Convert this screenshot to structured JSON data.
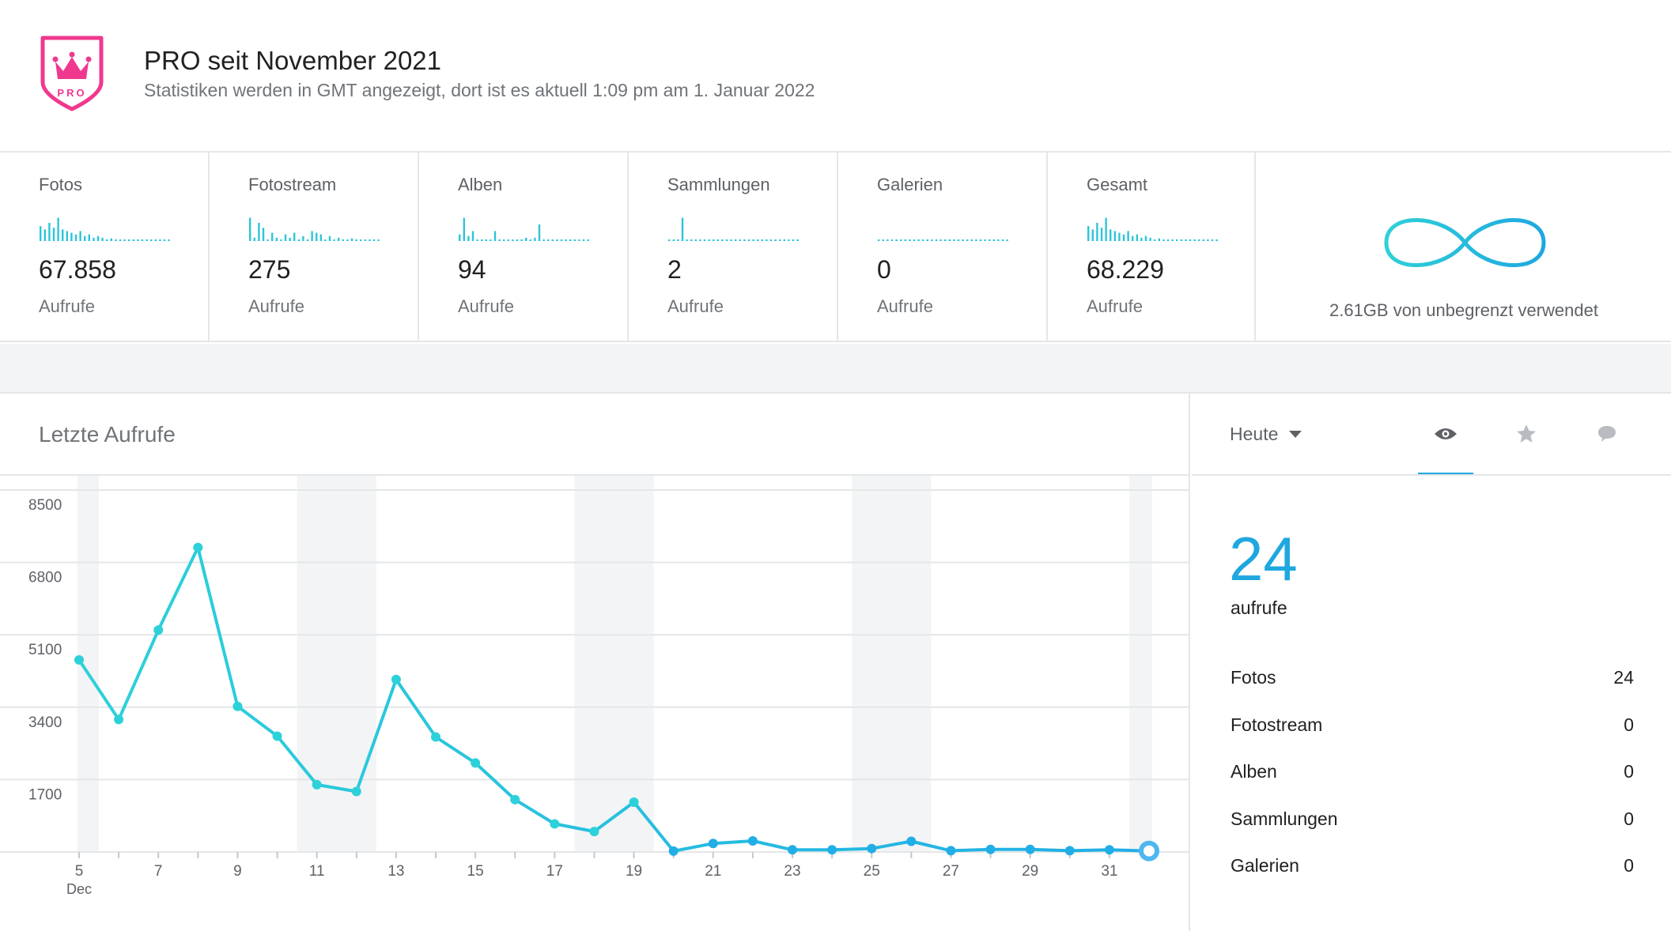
{
  "header": {
    "badge_text": "PRO",
    "title": "PRO seit November 2021",
    "subtitle": "Statistiken werden in GMT angezeigt, dort ist es aktuell 1:09 pm am 1. Januar 2022"
  },
  "stats": [
    {
      "label": "Fotos",
      "value": "67.858",
      "unit": "Aufrufe",
      "spark": [
        0.45,
        0.35,
        0.55,
        0.4,
        0.7,
        0.35,
        0.3,
        0.25,
        0.2,
        0.3,
        0.15,
        0.2,
        0.1,
        0.15,
        0.1,
        0.05,
        0.08,
        0.05,
        0.05,
        0.05,
        0.05,
        0.05,
        0.05,
        0.05,
        0.05,
        0.05,
        0.05,
        0.05,
        0.05,
        0.05
      ]
    },
    {
      "label": "Fotostream",
      "value": "275",
      "unit": "Aufrufe",
      "spark": [
        0.7,
        0.1,
        0.55,
        0.4,
        0.05,
        0.25,
        0.1,
        0.05,
        0.2,
        0.1,
        0.25,
        0.05,
        0.15,
        0.05,
        0.3,
        0.25,
        0.2,
        0.05,
        0.15,
        0.05,
        0.1,
        0.05,
        0.05,
        0.08,
        0.05,
        0.05,
        0.05,
        0.05,
        0.05,
        0.05
      ]
    },
    {
      "label": "Alben",
      "value": "94",
      "unit": "Aufrufe",
      "spark": [
        0.2,
        0.7,
        0.15,
        0.3,
        0.05,
        0.05,
        0.05,
        0.05,
        0.3,
        0.05,
        0.05,
        0.05,
        0.05,
        0.05,
        0.05,
        0.1,
        0.05,
        0.1,
        0.5,
        0.05,
        0.05,
        0.05,
        0.05,
        0.05,
        0.05,
        0.05,
        0.05,
        0.05,
        0.05,
        0.05
      ]
    },
    {
      "label": "Sammlungen",
      "value": "2",
      "unit": "Aufrufe",
      "spark": [
        0.05,
        0.05,
        0.05,
        0.7,
        0.05,
        0.05,
        0.05,
        0.05,
        0.05,
        0.05,
        0.05,
        0.05,
        0.05,
        0.05,
        0.05,
        0.05,
        0.05,
        0.05,
        0.05,
        0.05,
        0.05,
        0.05,
        0.05,
        0.05,
        0.05,
        0.05,
        0.05,
        0.05,
        0.05,
        0.05
      ]
    },
    {
      "label": "Galerien",
      "value": "0",
      "unit": "Aufrufe",
      "spark": [
        0.05,
        0.05,
        0.05,
        0.05,
        0.05,
        0.05,
        0.05,
        0.05,
        0.05,
        0.05,
        0.05,
        0.05,
        0.05,
        0.05,
        0.05,
        0.05,
        0.05,
        0.05,
        0.05,
        0.05,
        0.05,
        0.05,
        0.05,
        0.05,
        0.05,
        0.05,
        0.05,
        0.05,
        0.05,
        0.05
      ]
    },
    {
      "label": "Gesamt",
      "value": "68.229",
      "unit": "Aufrufe",
      "spark": [
        0.45,
        0.35,
        0.55,
        0.4,
        0.7,
        0.35,
        0.3,
        0.25,
        0.2,
        0.3,
        0.15,
        0.2,
        0.1,
        0.15,
        0.1,
        0.05,
        0.08,
        0.05,
        0.05,
        0.05,
        0.05,
        0.05,
        0.05,
        0.05,
        0.05,
        0.05,
        0.05,
        0.05,
        0.05,
        0.05
      ]
    }
  ],
  "storage": {
    "text": "2.61GB von unbegrenzt verwendet"
  },
  "chart_panel": {
    "title": "Letzte Aufrufe"
  },
  "chart_data": {
    "type": "line",
    "title": "Letzte Aufrufe",
    "xlabel": "",
    "ylabel": "",
    "x": [
      5,
      6,
      7,
      8,
      9,
      10,
      11,
      12,
      13,
      14,
      15,
      16,
      17,
      18,
      19,
      20,
      21,
      22,
      23,
      24,
      25,
      26,
      27,
      28,
      29,
      30,
      31,
      1
    ],
    "x_tick_labels": [
      "5",
      "7",
      "9",
      "11",
      "13",
      "15",
      "17",
      "19",
      "21",
      "23",
      "25",
      "27",
      "29",
      "31"
    ],
    "x_tick_values": [
      5,
      7,
      9,
      11,
      13,
      15,
      17,
      19,
      21,
      23,
      25,
      27,
      29,
      31
    ],
    "x_sublabel": "Dec",
    "values": [
      4510,
      3110,
      5210,
      7150,
      3420,
      2720,
      1580,
      1420,
      4050,
      2700,
      2090,
      1230,
      660,
      480,
      1170,
      20,
      200,
      260,
      50,
      50,
      80,
      250,
      30,
      60,
      60,
      30,
      50,
      24
    ],
    "yticks": [
      1700,
      3400,
      5100,
      6800,
      8500
    ],
    "ylim": [
      0,
      8500
    ],
    "weekend_shaded": [
      [
        5,
        5
      ],
      [
        11,
        12
      ],
      [
        18,
        19
      ],
      [
        25,
        26
      ],
      [
        32,
        32
      ]
    ],
    "grid": true,
    "line_color": "#2dd1d9",
    "line_color_end": "#21aee6",
    "current_point_color": "#4db7f0"
  },
  "side_panel": {
    "period": "Heute",
    "tabs": [
      {
        "name": "views",
        "icon": "eye-icon",
        "active": true
      },
      {
        "name": "favorites",
        "icon": "star-icon",
        "active": false
      },
      {
        "name": "comments",
        "icon": "comment-icon",
        "active": false
      }
    ],
    "count": "24",
    "unit": "aufrufe",
    "breakdown": [
      {
        "label": "Fotos",
        "value": "24"
      },
      {
        "label": "Fotostream",
        "value": "0"
      },
      {
        "label": "Alben",
        "value": "0"
      },
      {
        "label": "Sammlungen",
        "value": "0"
      },
      {
        "label": "Galerien",
        "value": "0"
      }
    ]
  },
  "colors": {
    "accent_blue": "#1fa7e0",
    "pro_pink": "#f0388e",
    "spark_cyan": "#2ec4d8",
    "divider": "#e4e6e8"
  }
}
